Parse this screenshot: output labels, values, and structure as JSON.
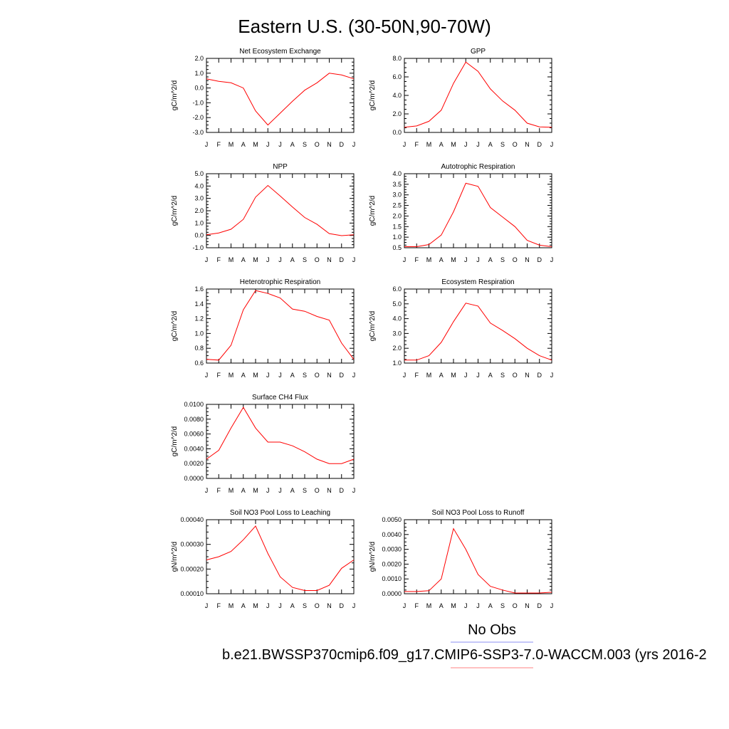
{
  "page": {
    "title": "Eastern U.S. (30-50N,90-70W)",
    "legend": [
      {
        "label": "No Obs",
        "color": "#8b8ff0"
      },
      {
        "label": "b.e21.BWSSP370cmip6.f09_g17.CMIP6-SSP3-7.0-WACCM.003 (yrs 2016-2",
        "color": "#ff8080"
      }
    ]
  },
  "months": [
    "J",
    "F",
    "M",
    "A",
    "M",
    "J",
    "J",
    "A",
    "S",
    "O",
    "N",
    "D",
    "J"
  ],
  "chart_data": [
    {
      "type": "line",
      "title": "Net Ecosystem Exchange",
      "ylabel": "gC/m^2/d",
      "ylim": [
        -3.0,
        2.0
      ],
      "yticks": [
        "2.0",
        "1.0",
        "0.0",
        "-1.0",
        "-2.0",
        "-3.0"
      ],
      "categories": [
        "J",
        "F",
        "M",
        "A",
        "M",
        "J",
        "J",
        "A",
        "S",
        "O",
        "N",
        "D",
        "J"
      ],
      "series": [
        {
          "color": "#ff0000",
          "values": [
            0.62,
            0.45,
            0.35,
            0.0,
            -1.55,
            -2.5,
            -1.7,
            -0.9,
            -0.15,
            0.35,
            1.0,
            0.88,
            0.62
          ]
        }
      ]
    },
    {
      "type": "line",
      "title": "GPP",
      "ylabel": "gC/m^2/d",
      "ylim": [
        0.0,
        8.0
      ],
      "yticks": [
        "8.0",
        "6.0",
        "4.0",
        "2.0",
        "0.0"
      ],
      "categories": [
        "J",
        "F",
        "M",
        "A",
        "M",
        "J",
        "J",
        "A",
        "S",
        "O",
        "N",
        "D",
        "J"
      ],
      "series": [
        {
          "color": "#ff0000",
          "values": [
            0.55,
            0.7,
            1.2,
            2.4,
            5.3,
            7.6,
            6.6,
            4.7,
            3.4,
            2.4,
            1.0,
            0.6,
            0.55
          ]
        }
      ]
    },
    {
      "type": "line",
      "title": "NPP",
      "ylabel": "gC/m^2/d",
      "ylim": [
        -1.0,
        5.0
      ],
      "yticks": [
        "5.0",
        "4.0",
        "3.0",
        "2.0",
        "1.0",
        "0.0",
        "-1.0"
      ],
      "categories": [
        "J",
        "F",
        "M",
        "A",
        "M",
        "J",
        "J",
        "A",
        "S",
        "O",
        "N",
        "D",
        "J"
      ],
      "series": [
        {
          "color": "#ff0000",
          "values": [
            0.05,
            0.2,
            0.5,
            1.3,
            3.1,
            4.05,
            3.2,
            2.3,
            1.45,
            0.9,
            0.15,
            -0.02,
            0.05
          ]
        }
      ]
    },
    {
      "type": "line",
      "title": "Autotrophic Respiration",
      "ylabel": "gC/m^2/d",
      "ylim": [
        0.5,
        4.0
      ],
      "yticks": [
        "4.0",
        "3.5",
        "3.0",
        "2.5",
        "2.0",
        "1.5",
        "1.0",
        "0.5"
      ],
      "categories": [
        "J",
        "F",
        "M",
        "A",
        "M",
        "J",
        "J",
        "A",
        "S",
        "O",
        "N",
        "D",
        "J"
      ],
      "series": [
        {
          "color": "#ff0000",
          "values": [
            0.55,
            0.55,
            0.65,
            1.1,
            2.2,
            3.55,
            3.4,
            2.4,
            1.95,
            1.5,
            0.85,
            0.62,
            0.55
          ]
        }
      ]
    },
    {
      "type": "line",
      "title": "Heterotrophic Respiration",
      "ylabel": "gC/m^2/d",
      "ylim": [
        0.6,
        1.6
      ],
      "yticks": [
        "1.6",
        "1.4",
        "1.2",
        "1.0",
        "0.8",
        "0.6"
      ],
      "categories": [
        "J",
        "F",
        "M",
        "A",
        "M",
        "J",
        "J",
        "A",
        "S",
        "O",
        "N",
        "D",
        "J"
      ],
      "series": [
        {
          "color": "#ff0000",
          "values": [
            0.65,
            0.64,
            0.84,
            1.32,
            1.58,
            1.54,
            1.48,
            1.33,
            1.3,
            1.23,
            1.18,
            0.87,
            0.65
          ]
        }
      ]
    },
    {
      "type": "line",
      "title": "Ecosystem Respiration",
      "ylabel": "gC/m^2/d",
      "ylim": [
        1.0,
        6.0
      ],
      "yticks": [
        "6.0",
        "5.0",
        "4.0",
        "3.0",
        "2.0",
        "1.0"
      ],
      "categories": [
        "J",
        "F",
        "M",
        "A",
        "M",
        "J",
        "J",
        "A",
        "S",
        "O",
        "N",
        "D",
        "J"
      ],
      "series": [
        {
          "color": "#ff0000",
          "values": [
            1.2,
            1.2,
            1.5,
            2.4,
            3.8,
            5.05,
            4.85,
            3.7,
            3.2,
            2.65,
            2.0,
            1.5,
            1.2
          ]
        }
      ]
    },
    {
      "type": "line",
      "title": "Surface CH4 Flux",
      "ylabel": "gC/m^2/d",
      "ylim": [
        0.0,
        0.01
      ],
      "yticks": [
        "0.0100",
        "0.0080",
        "0.0060",
        "0.0040",
        "0.0020",
        "0.0000"
      ],
      "categories": [
        "J",
        "F",
        "M",
        "A",
        "M",
        "J",
        "J",
        "A",
        "S",
        "O",
        "N",
        "D",
        "J"
      ],
      "series": [
        {
          "color": "#ff0000",
          "values": [
            0.0026,
            0.0038,
            0.0068,
            0.0096,
            0.0068,
            0.0049,
            0.0049,
            0.0044,
            0.0036,
            0.0026,
            0.002,
            0.002,
            0.0026
          ]
        }
      ]
    },
    {
      "type": "line",
      "title": "Soil NO3 Pool Loss to Leaching",
      "ylabel": "gN/m^2/d",
      "ylim": [
        5e-05,
        0.0004
      ],
      "yticks": [
        "0.00040",
        "0.00030",
        "0.00020",
        "0.00010"
      ],
      "categories": [
        "J",
        "F",
        "M",
        "A",
        "M",
        "J",
        "J",
        "A",
        "S",
        "O",
        "N",
        "D",
        "J"
      ],
      "series": [
        {
          "color": "#ff0000",
          "values": [
            0.00021,
            0.000225,
            0.00025,
            0.000305,
            0.00037,
            0.00024,
            0.00013,
            8e-05,
            6.5e-05,
            6.5e-05,
            9e-05,
            0.00017,
            0.00021
          ]
        }
      ]
    },
    {
      "type": "line",
      "title": "Soil NO3 Pool Loss to Runoff",
      "ylabel": "gN/m^2/d",
      "ylim": [
        0.0,
        0.005
      ],
      "yticks": [
        "0.0050",
        "0.0040",
        "0.0030",
        "0.0020",
        "0.0010",
        "0.0000"
      ],
      "categories": [
        "J",
        "F",
        "M",
        "A",
        "M",
        "J",
        "J",
        "A",
        "S",
        "O",
        "N",
        "D",
        "J"
      ],
      "series": [
        {
          "color": "#ff0000",
          "values": [
            0.00015,
            0.00015,
            0.0002,
            0.001,
            0.0044,
            0.003,
            0.0013,
            0.0005,
            0.00025,
            5e-05,
            5e-05,
            5e-05,
            0.0001
          ]
        }
      ]
    }
  ]
}
